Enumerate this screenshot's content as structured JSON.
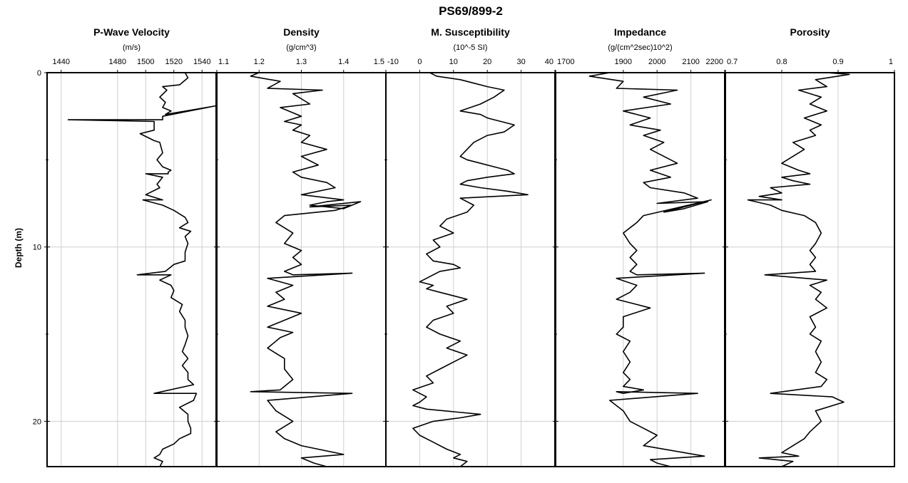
{
  "chart_data": {
    "type": "line",
    "title": "PS69/899-2",
    "ylabel": "Depth (m)",
    "ylim": [
      0,
      22.6
    ],
    "yticks": [
      0,
      10,
      20
    ],
    "y_inverted": true,
    "grid": true,
    "panels": [
      {
        "name": "P-Wave Velocity",
        "unit": "(m/s)",
        "xlim": [
          1430,
          1550
        ],
        "xticks": [
          1440,
          1480,
          1500,
          1520,
          1540
        ],
        "series": [
          {
            "x": [
              1528,
              1530,
              1524,
              1512,
              1515,
              1510,
              1514,
              1512,
              1518,
              1514,
              1550,
              1512,
              1512,
              1445,
              1506,
              1506,
              1496,
              1506,
              1510,
              1512,
              1508,
              1512,
              1518,
              1516,
              1516,
              1500,
              1512,
              1508,
              1510,
              1500,
              1512,
              1498,
              1512,
              1520,
              1528,
              1530,
              1524,
              1532,
              1528,
              1530,
              1528,
              1528,
              1520,
              1514,
              1494,
              1518,
              1510,
              1518,
              1520,
              1518,
              1526,
              1524,
              1528,
              1528,
              1530,
              1528,
              1526,
              1530,
              1526,
              1530,
              1530,
              1534,
              1506,
              1536,
              1534,
              1524,
              1530,
              1530,
              1532,
              1532,
              1524,
              1520,
              1512,
              1510,
              1506,
              1512,
              1510
            ],
            "y": [
              0.0,
              0.3,
              0.7,
              0.8,
              1.0,
              1.4,
              1.7,
              2.0,
              2.2,
              2.4,
              1.9,
              2.5,
              2.7,
              2.7,
              2.8,
              3.3,
              3.5,
              3.9,
              4.0,
              4.6,
              5.0,
              5.4,
              5.6,
              5.7,
              5.8,
              5.8,
              6.0,
              6.4,
              6.6,
              7.0,
              7.3,
              7.3,
              7.6,
              7.9,
              8.3,
              8.6,
              8.9,
              9.1,
              9.4,
              9.8,
              10.3,
              10.8,
              11.0,
              11.4,
              11.6,
              11.6,
              11.9,
              12.2,
              12.5,
              12.9,
              13.3,
              13.7,
              14.2,
              14.6,
              15.1,
              15.6,
              16.0,
              16.4,
              16.8,
              17.2,
              17.6,
              17.9,
              18.4,
              18.4,
              18.8,
              19.2,
              19.6,
              20.0,
              20.4,
              20.7,
              21.0,
              21.3,
              21.6,
              21.9,
              22.1,
              22.3,
              22.6
            ]
          }
        ]
      },
      {
        "name": "Density",
        "unit": "(g/cm^3)",
        "xlim": [
          1.1,
          1.5
        ],
        "xticks": [
          1.1,
          1.2,
          1.3,
          1.4,
          1.5
        ],
        "series": [
          {
            "x": [
              1.2,
              1.18,
              1.25,
              1.22,
              1.35,
              1.28,
              1.32,
              1.25,
              1.3,
              1.26,
              1.3,
              1.28,
              1.32,
              1.3,
              1.36,
              1.3,
              1.34,
              1.28,
              1.3,
              1.36,
              1.38,
              1.3,
              1.4,
              1.36,
              1.32,
              1.4,
              1.44,
              1.32,
              1.42,
              1.38,
              1.26,
              1.24,
              1.28,
              1.26,
              1.3,
              1.28,
              1.3,
              1.26,
              1.28,
              1.42,
              1.22,
              1.28,
              1.24,
              1.26,
              1.22,
              1.3,
              1.26,
              1.22,
              1.28,
              1.25,
              1.22,
              1.26,
              1.26,
              1.28,
              1.25,
              1.18,
              1.42,
              1.22,
              1.24,
              1.28,
              1.24,
              1.26,
              1.3,
              1.4,
              1.3,
              1.33,
              1.36
            ],
            "y": [
              0.0,
              0.2,
              0.5,
              0.9,
              1.0,
              1.2,
              1.8,
              2.0,
              2.5,
              2.8,
              3.0,
              3.3,
              3.6,
              4.0,
              4.4,
              4.8,
              5.3,
              5.7,
              6.0,
              6.3,
              6.6,
              7.0,
              7.3,
              7.4,
              7.6,
              7.8,
              7.4,
              7.7,
              7.6,
              7.9,
              8.2,
              8.6,
              9.2,
              9.8,
              10.2,
              10.6,
              11.0,
              11.4,
              11.6,
              11.5,
              11.8,
              12.2,
              12.6,
              13.0,
              13.4,
              13.8,
              14.2,
              14.6,
              14.9,
              15.2,
              15.8,
              16.4,
              17.0,
              17.6,
              18.2,
              18.3,
              18.4,
              18.8,
              19.4,
              20.0,
              20.6,
              21.0,
              21.4,
              21.9,
              22.1,
              22.4,
              22.6
            ]
          }
        ]
      },
      {
        "name": "M. Susceptibility",
        "unit": "(10^-5 SI)",
        "xlim": [
          -10,
          40
        ],
        "xticks": [
          -10,
          0,
          10,
          20,
          30,
          40
        ],
        "series": [
          {
            "x": [
              3,
              5,
              12,
              16,
              20,
              25,
              22,
              18,
              15,
              12,
              18,
              20,
              24,
              28,
              25,
              20,
              16,
              14,
              12,
              14,
              18,
              22,
              26,
              28,
              20,
              14,
              12,
              18,
              26,
              32,
              12,
              16,
              14,
              8,
              6,
              10,
              4,
              6,
              2,
              4,
              10,
              12,
              6,
              2,
              0,
              4,
              2,
              6,
              14,
              8,
              10,
              4,
              2,
              6,
              12,
              8,
              14,
              10,
              6,
              2,
              4,
              -2,
              2,
              0,
              -2,
              2,
              18,
              12,
              4,
              -2,
              0,
              4,
              8,
              12,
              10,
              14,
              12
            ],
            "y": [
              0.0,
              0.2,
              0.4,
              0.6,
              0.8,
              1.0,
              1.4,
              1.8,
              2.0,
              2.2,
              2.4,
              2.6,
              2.8,
              3.0,
              3.4,
              3.6,
              4.0,
              4.4,
              4.8,
              5.0,
              5.2,
              5.4,
              5.6,
              5.8,
              6.0,
              6.2,
              6.4,
              6.6,
              6.8,
              7.0,
              7.2,
              7.6,
              8.0,
              8.4,
              8.8,
              9.2,
              9.6,
              10.0,
              10.4,
              10.8,
              11.0,
              11.2,
              11.4,
              11.8,
              12.0,
              12.2,
              12.4,
              12.6,
              13.0,
              13.4,
              13.8,
              14.2,
              14.6,
              15.0,
              15.4,
              15.8,
              16.2,
              16.6,
              17.0,
              17.4,
              17.8,
              18.2,
              18.6,
              18.9,
              19.1,
              19.3,
              19.6,
              19.8,
              20.0,
              20.4,
              20.8,
              21.2,
              21.6,
              21.9,
              22.1,
              22.3,
              22.6
            ]
          }
        ]
      },
      {
        "name": "Impedance",
        "unit": "(g/(cm^2sec)10^2)",
        "xlim": [
          1700,
          2200
        ],
        "xticks": [
          1700,
          1900,
          2000,
          2100,
          2200
        ],
        "series": [
          {
            "x": [
              1860,
              1800,
              1900,
              1880,
              2060,
              1960,
              2040,
              1900,
              1980,
              1920,
              2010,
              1960,
              2020,
              1980,
              2060,
              1980,
              2040,
              1960,
              1980,
              2080,
              2120,
              2000,
              2150,
              2080,
              2020,
              2160,
              1960,
              1940,
              1900,
              1920,
              1940,
              1920,
              1940,
              1920,
              1940,
              2140,
              1880,
              1940,
              1920,
              1880,
              1980,
              1900,
              1900,
              1880,
              1920,
              1900,
              1920,
              1900,
              1920,
              1900,
              1960,
              1900,
              1880,
              2120,
              1860,
              1900,
              1920,
              2000,
              1960,
              2140,
              1980,
              2000,
              2040
            ],
            "y": [
              0.0,
              0.2,
              0.5,
              0.9,
              1.0,
              1.4,
              1.8,
              2.2,
              2.6,
              3.0,
              3.3,
              3.6,
              4.0,
              4.4,
              5.2,
              5.6,
              6.0,
              6.3,
              6.6,
              6.9,
              7.2,
              7.5,
              7.4,
              7.8,
              8.0,
              7.3,
              8.2,
              8.6,
              9.2,
              9.8,
              10.2,
              10.6,
              11.0,
              11.4,
              11.6,
              11.5,
              11.8,
              12.2,
              12.6,
              13.0,
              13.5,
              14.0,
              14.6,
              15.0,
              15.4,
              16.0,
              16.6,
              17.2,
              17.6,
              18.0,
              18.2,
              18.4,
              18.3,
              18.4,
              18.8,
              19.4,
              20.0,
              20.8,
              21.4,
              22.0,
              22.2,
              22.4,
              22.6
            ]
          }
        ]
      },
      {
        "name": "Porosity",
        "unit": "",
        "xlim": [
          0.7,
          1.0
        ],
        "xticks": [
          0.7,
          0.8,
          0.9,
          1.0
        ],
        "series": [
          {
            "x": [
              0.88,
              0.92,
              0.86,
              0.88,
              0.83,
              0.87,
              0.85,
              0.88,
              0.84,
              0.87,
              0.85,
              0.86,
              0.82,
              0.84,
              0.8,
              0.83,
              0.85,
              0.8,
              0.82,
              0.85,
              0.78,
              0.8,
              0.76,
              0.8,
              0.74,
              0.78,
              0.8,
              0.84,
              0.86,
              0.87,
              0.86,
              0.85,
              0.86,
              0.85,
              0.86,
              0.77,
              0.88,
              0.85,
              0.87,
              0.86,
              0.88,
              0.85,
              0.86,
              0.85,
              0.87,
              0.86,
              0.87,
              0.86,
              0.88,
              0.87,
              0.78,
              0.89,
              0.91,
              0.86,
              0.87,
              0.85,
              0.84,
              0.82,
              0.8,
              0.83,
              0.76,
              0.82,
              0.8
            ],
            "y": [
              0.0,
              0.1,
              0.4,
              0.8,
              1.0,
              1.4,
              1.8,
              2.2,
              2.6,
              3.0,
              3.3,
              3.6,
              4.0,
              4.4,
              5.2,
              5.6,
              5.8,
              6.0,
              6.2,
              6.4,
              6.6,
              6.9,
              7.1,
              7.3,
              7.3,
              7.6,
              7.9,
              8.2,
              8.6,
              9.2,
              9.8,
              10.2,
              10.6,
              11.0,
              11.4,
              11.6,
              11.9,
              12.2,
              12.6,
              13.0,
              13.5,
              14.0,
              14.6,
              15.0,
              15.4,
              16.0,
              16.6,
              17.2,
              17.6,
              18.0,
              18.4,
              18.6,
              18.9,
              19.4,
              20.0,
              20.6,
              21.0,
              21.4,
              21.8,
              22.0,
              22.1,
              22.3,
              22.6
            ]
          }
        ]
      }
    ]
  }
}
